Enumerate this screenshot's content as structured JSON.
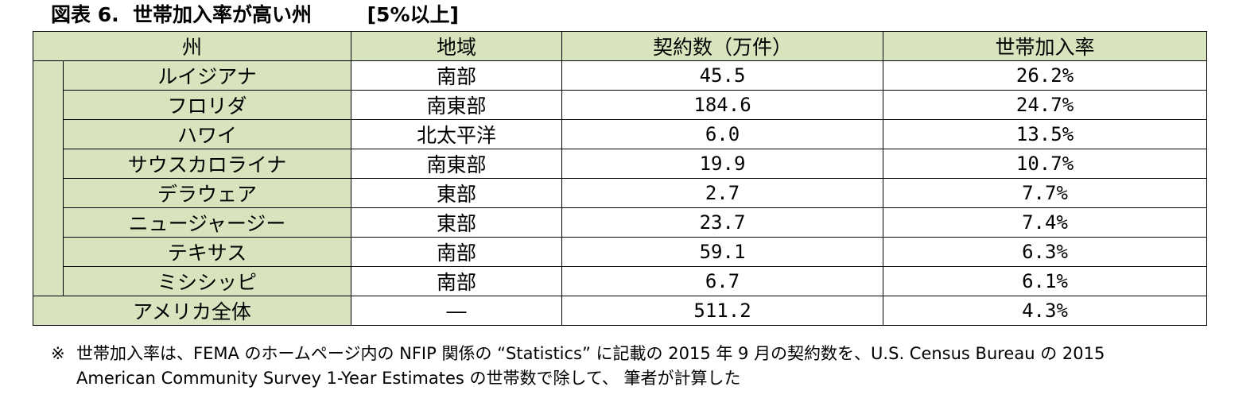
{
  "title": "図表 6.  世帯加入率が高い州        [5%以上]",
  "table": {
    "headers": [
      "州",
      "地域",
      "契約数（万件）",
      "世帯加入率"
    ],
    "rows": [
      {
        "state": "ルイジアナ",
        "region": "南部",
        "contracts": "45.5",
        "rate": "26.2%"
      },
      {
        "state": "フロリダ",
        "region": "南東部",
        "contracts": "184.6",
        "rate": "24.7%"
      },
      {
        "state": "ハワイ",
        "region": "北太平洋",
        "contracts": "6.0",
        "rate": "13.5%"
      },
      {
        "state": "サウスカロライナ",
        "region": "南東部",
        "contracts": "19.9",
        "rate": "10.7%"
      },
      {
        "state": "デラウェア",
        "region": "東部",
        "contracts": "2.7",
        "rate": "7.7%"
      },
      {
        "state": "ニュージャージー",
        "region": "東部",
        "contracts": "23.7",
        "rate": "7.4%"
      },
      {
        "state": "テキサス",
        "region": "南部",
        "contracts": "59.1",
        "rate": "6.3%"
      },
      {
        "state": "ミシシッピ",
        "region": "南部",
        "contracts": "6.7",
        "rate": "6.1%"
      }
    ],
    "total": {
      "state": "アメリカ全体",
      "region": "―",
      "contracts": "511.2",
      "rate": "4.3%"
    }
  },
  "note": {
    "mark": "※",
    "line1": "世帯加入率は、FEMA のホームページ内の NFIP 関係の “Statistics” に記載の 2015 年 9 月の契約数を、U.S. Census Bureau の 2015",
    "line2": "American Community Survey 1-Year Estimates の世帯数で除して、 筆者が計算した"
  }
}
